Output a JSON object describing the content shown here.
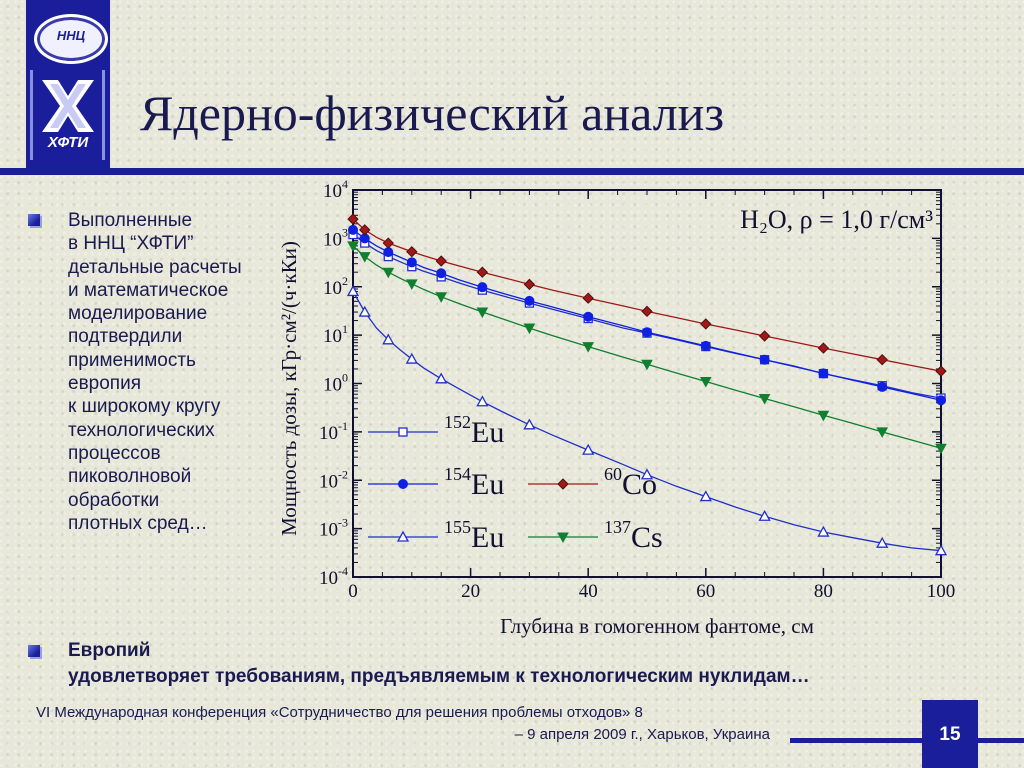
{
  "slide": {
    "title": "Ядерно-физический анализ",
    "logo_top": "ННЦ",
    "logo_bottom": "ХФТИ",
    "body_lines": [
      "Выполненные",
      "в ННЦ “ХФТИ”",
      "детальные расчеты",
      "и математическое",
      "моделирование",
      "подтвердили",
      "применимость",
      "европия",
      "к широкому кругу",
      "технологических",
      "процессов",
      "пиковолновой",
      "обработки",
      "плотных сред…"
    ],
    "bottom_heading": "Европий",
    "bottom_text": "удовлетворяет требованиям, предъявляемым к технологическим нуклидам…",
    "footer_line1": "VI Международная конференция «Сотрудничество для решения проблемы отходов» 8",
    "footer_line2": "– 9 апреля 2009 г., Харьков, Украина",
    "page_number": "15",
    "colors": {
      "accent": "#1a1e9a",
      "text": "#1a1a50",
      "background": "#e7e7da"
    }
  },
  "chart_data": {
    "type": "line",
    "annotation": "H₂O, ρ = 1,0 г/см³",
    "xlabel": "Глубина в гомогенном фантоме, см",
    "ylabel": "Мощность дозы, кГр·см²/(ч·кКи)",
    "xlim": [
      0,
      100
    ],
    "ylim": [
      0.0001,
      10000
    ],
    "yscale": "log",
    "xticks": [
      "0",
      "20",
      "40",
      "60",
      "80",
      "100"
    ],
    "yticks": [
      {
        "base": "10",
        "exp": "4"
      },
      {
        "base": "10",
        "exp": "3"
      },
      {
        "base": "10",
        "exp": "2"
      },
      {
        "base": "10",
        "exp": "1"
      },
      {
        "base": "10",
        "exp": "0"
      },
      {
        "base": "10",
        "exp": "-1"
      },
      {
        "base": "10",
        "exp": "-2"
      },
      {
        "base": "10",
        "exp": "-3"
      },
      {
        "base": "10",
        "exp": "-4"
      }
    ],
    "grid": false,
    "series": [
      {
        "name": "¹⁵²Eu",
        "mass": "152",
        "element": "Eu",
        "color": "#2030c8",
        "marker": "square-open",
        "x": [
          0,
          2,
          4,
          6,
          8,
          10,
          12,
          15,
          18,
          22,
          26,
          30,
          34,
          40,
          46,
          50,
          55,
          60,
          65,
          70,
          75,
          80,
          85,
          90,
          95,
          100
        ],
        "y": [
          1200,
          800,
          560,
          420,
          330,
          260,
          210,
          160,
          120,
          85,
          62,
          46,
          34,
          22,
          14,
          11,
          8,
          5.8,
          4.2,
          3.1,
          2.3,
          1.6,
          1.2,
          0.9,
          0.65,
          0.5
        ]
      },
      {
        "name": "¹⁵⁴Eu",
        "mass": "154",
        "element": "Eu",
        "color": "#1020e0",
        "marker": "circle-filled",
        "x": [
          0,
          2,
          4,
          6,
          8,
          10,
          12,
          15,
          18,
          22,
          26,
          30,
          34,
          40,
          46,
          50,
          55,
          60,
          65,
          70,
          75,
          80,
          85,
          90,
          95,
          100
        ],
        "y": [
          1500,
          1000,
          700,
          520,
          410,
          320,
          250,
          190,
          140,
          98,
          70,
          51,
          38,
          24,
          15.5,
          11.5,
          8.3,
          6,
          4.3,
          3.1,
          2.25,
          1.62,
          1.17,
          0.85,
          0.62,
          0.45
        ]
      },
      {
        "name": "¹⁵⁵Eu",
        "mass": "155",
        "element": "Eu",
        "color": "#2030c8",
        "marker": "triangle-open",
        "x": [
          0,
          2,
          4,
          6,
          8,
          10,
          12,
          15,
          18,
          22,
          26,
          30,
          34,
          40,
          46,
          50,
          55,
          60,
          65,
          70,
          75,
          80,
          85,
          90,
          95,
          100
        ],
        "y": [
          80,
          30,
          14,
          8,
          5,
          3.2,
          2.1,
          1.25,
          0.78,
          0.42,
          0.24,
          0.14,
          0.085,
          0.042,
          0.021,
          0.013,
          0.0075,
          0.0046,
          0.0028,
          0.0018,
          0.0012,
          0.00085,
          0.00065,
          0.0005,
          0.0004,
          0.00035
        ]
      },
      {
        "name": "⁶⁰Co",
        "mass": "60",
        "element": "Co",
        "color": "#a01818",
        "marker": "diamond-filled",
        "x": [
          0,
          2,
          4,
          6,
          8,
          10,
          12,
          15,
          18,
          22,
          26,
          30,
          34,
          40,
          46,
          50,
          55,
          60,
          65,
          70,
          75,
          80,
          85,
          90,
          95,
          100
        ],
        "y": [
          2500,
          1500,
          1050,
          800,
          650,
          530,
          440,
          340,
          270,
          200,
          150,
          112,
          85,
          58,
          40,
          31,
          23,
          17,
          12.8,
          9.6,
          7.2,
          5.4,
          4.1,
          3.1,
          2.35,
          1.8
        ]
      },
      {
        "name": "¹³⁷Cs",
        "mass": "137",
        "element": "Cs",
        "color": "#108030",
        "marker": "triangle-down-filled",
        "x": [
          0,
          2,
          4,
          6,
          8,
          10,
          12,
          15,
          18,
          22,
          26,
          30,
          34,
          40,
          46,
          50,
          55,
          60,
          65,
          70,
          75,
          80,
          85,
          90,
          95,
          100
        ],
        "y": [
          700,
          420,
          280,
          200,
          150,
          115,
          88,
          62,
          45,
          30,
          20.5,
          14,
          9.7,
          5.8,
          3.5,
          2.5,
          1.65,
          1.1,
          0.73,
          0.49,
          0.33,
          0.22,
          0.15,
          0.1,
          0.068,
          0.046
        ]
      }
    ],
    "legend": "inside-lower-left"
  }
}
